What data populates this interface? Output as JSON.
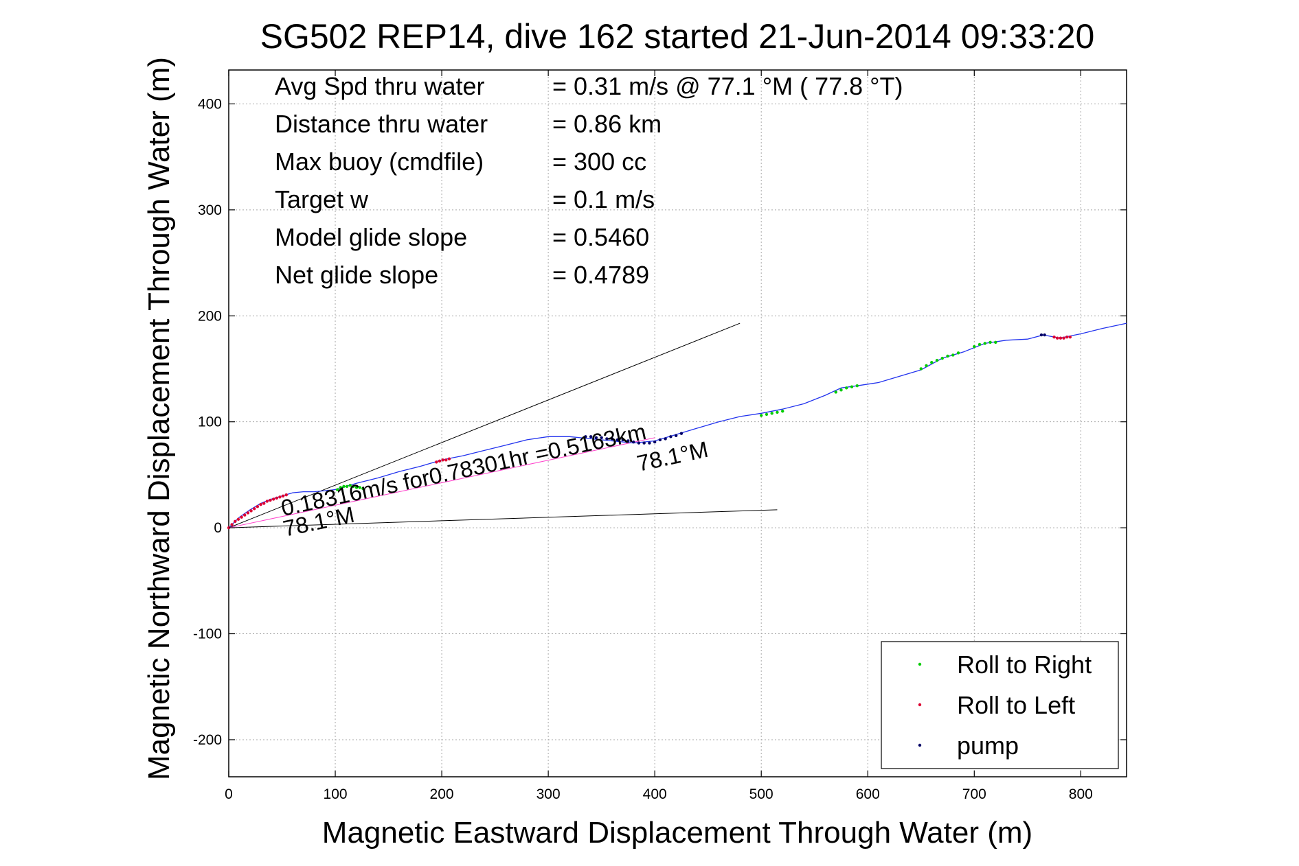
{
  "chart_data": {
    "type": "scatter",
    "title": "SG502 REP14, dive 162 started 21-Jun-2014 09:33:20",
    "xlabel": "Magnetic Eastward Displacement Through Water (m)",
    "ylabel": "Magnetic Northward Displacement Through Water (m)",
    "xlim": [
      0,
      843
    ],
    "ylim": [
      -235,
      432
    ],
    "xticks": [
      0,
      100,
      200,
      300,
      400,
      500,
      600,
      700,
      800
    ],
    "yticks": [
      -200,
      -100,
      0,
      100,
      200,
      300,
      400
    ],
    "grid": true,
    "legend_position": "bottom-right",
    "colors": {
      "track": "#2233ee",
      "roll_right": "#00cc00",
      "roll_left": "#dd0033",
      "pump": "#000066",
      "model_line": "#ff44cc",
      "reference": "#000000"
    },
    "info": [
      {
        "label": "Avg Spd thru water",
        "value": "=  0.31 m/s @  77.1 °M ( 77.8 °T)"
      },
      {
        "label": "Distance thru water",
        "value": "=  0.86 km"
      },
      {
        "label": "Max buoy (cmdfile)",
        "value": "= 300 cc"
      },
      {
        "label": "Target w",
        "value": "= 0.1 m/s"
      },
      {
        "label": "Model glide slope",
        "value": "= 0.5460"
      },
      {
        "label": "Net glide slope",
        "value": "= 0.4789"
      }
    ],
    "annotations": {
      "current": "0.18316m/s for0.78301hr =0.5163km",
      "heading_near": "78.1°M",
      "heading_far": "78.1°M"
    },
    "reference_lines": [
      {
        "from": [
          0,
          0
        ],
        "to": [
          480,
          193
        ]
      },
      {
        "from": [
          0,
          0
        ],
        "to": [
          515,
          17
        ]
      }
    ],
    "model_line": {
      "from": [
        0,
        0
      ],
      "to": [
        400,
        85
      ]
    },
    "series": [
      {
        "name": "track",
        "x": [
          0,
          10,
          20,
          30,
          40,
          50,
          60,
          70,
          80,
          90,
          100,
          120,
          140,
          160,
          180,
          200,
          220,
          240,
          260,
          280,
          300,
          320,
          340,
          360,
          380,
          400,
          420,
          440,
          460,
          480,
          500,
          520,
          540,
          560,
          575,
          590,
          610,
          630,
          650,
          670,
          690,
          710,
          730,
          750,
          765,
          780,
          800,
          820,
          843
        ],
        "y": [
          0,
          10,
          17,
          23,
          27,
          30,
          33,
          34,
          34,
          35,
          36,
          42,
          47,
          53,
          58,
          64,
          68,
          73,
          78,
          83,
          86,
          86,
          84,
          82,
          80,
          82,
          88,
          94,
          100,
          105,
          108,
          112,
          117,
          125,
          132,
          134,
          137,
          143,
          149,
          160,
          166,
          174,
          177,
          178,
          182,
          179,
          183,
          188,
          193
        ]
      },
      {
        "name": "Roll to Right",
        "x": [
          102,
          105,
          108,
          111,
          114,
          117,
          120,
          123,
          126,
          500,
          505,
          510,
          515,
          520,
          570,
          575,
          580,
          585,
          590,
          650,
          655,
          660,
          665,
          670,
          675,
          680,
          685,
          700,
          705,
          710,
          715,
          720
        ],
        "y": [
          36,
          38,
          39,
          39,
          40,
          39,
          38,
          38,
          37,
          106,
          107,
          108,
          109,
          110,
          128,
          130,
          132,
          133,
          134,
          150,
          153,
          156,
          158,
          160,
          162,
          163,
          165,
          171,
          173,
          174,
          175,
          175
        ]
      },
      {
        "name": "Roll to Left",
        "x": [
          0,
          3,
          6,
          9,
          12,
          15,
          18,
          21,
          24,
          27,
          30,
          33,
          36,
          39,
          42,
          45,
          48,
          51,
          54,
          195,
          198,
          201,
          204,
          207,
          775,
          778,
          781,
          784,
          787,
          790
        ],
        "y": [
          0,
          3,
          6,
          8,
          10,
          12,
          14,
          16,
          18,
          20,
          22,
          23,
          25,
          26,
          27,
          28,
          29,
          30,
          31,
          62,
          63,
          64,
          64,
          65,
          180,
          179,
          179,
          179,
          180,
          180
        ]
      },
      {
        "name": "pump",
        "x": [
          335,
          340,
          345,
          350,
          355,
          360,
          365,
          370,
          375,
          380,
          385,
          390,
          395,
          400,
          405,
          410,
          415,
          420,
          425,
          763,
          766
        ],
        "y": [
          86,
          86,
          85,
          85,
          84,
          84,
          83,
          83,
          82,
          81,
          80,
          80,
          80,
          81,
          83,
          84,
          86,
          87,
          89,
          182,
          182
        ]
      }
    ]
  }
}
